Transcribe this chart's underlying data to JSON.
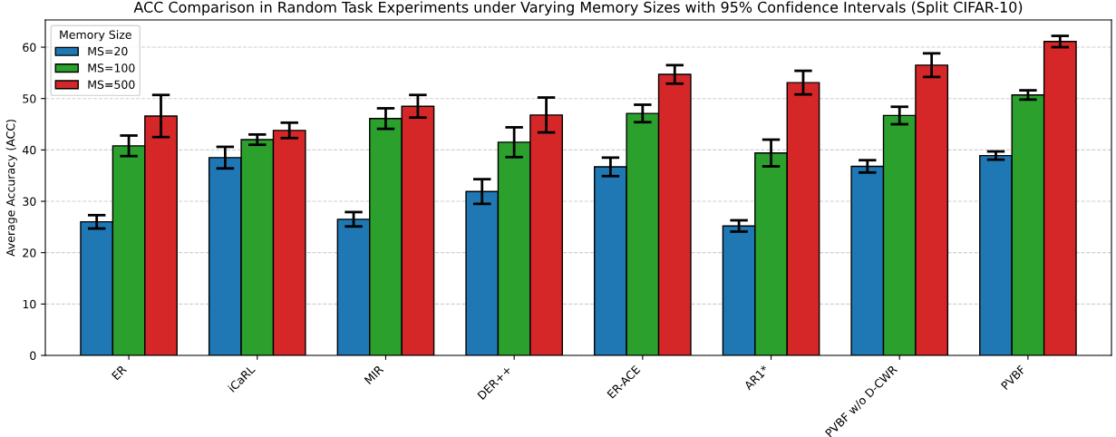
{
  "chart_data": {
    "type": "bar",
    "title": "ACC Comparison in Random Task Experiments under Varying Memory Sizes with 95% Confidence Intervals (Split CIFAR-10)",
    "ylabel": "Average Accuracy (ACC)",
    "legend_title": "Memory Size",
    "legend": "top left",
    "grid": "y",
    "categories": [
      "ER",
      "iCaRL",
      "MIR",
      "DER++",
      "ER-ACE",
      "AR1*",
      "PVBF w/o D-CWR",
      "PVBF"
    ],
    "series": [
      {
        "name": "MS=20",
        "color": "#1f77b4",
        "values": [
          26.0,
          38.5,
          26.5,
          31.9,
          36.7,
          25.2,
          36.8,
          38.9
        ],
        "errors": [
          1.3,
          2.1,
          1.4,
          2.4,
          1.8,
          1.1,
          1.2,
          0.8
        ]
      },
      {
        "name": "MS=100",
        "color": "#2ca02c",
        "values": [
          40.8,
          42.0,
          46.1,
          41.5,
          47.1,
          39.4,
          46.7,
          50.7
        ],
        "errors": [
          2.0,
          1.0,
          2.0,
          2.9,
          1.7,
          2.6,
          1.7,
          0.9
        ]
      },
      {
        "name": "MS=500",
        "color": "#d62728",
        "values": [
          46.6,
          43.8,
          48.5,
          46.8,
          54.7,
          53.1,
          56.5,
          61.1
        ],
        "errors": [
          4.1,
          1.5,
          2.2,
          3.4,
          1.8,
          2.3,
          2.3,
          1.1
        ]
      }
    ],
    "ylim": [
      0,
      65.3
    ],
    "yticks": [
      0,
      10,
      20,
      30,
      40,
      50,
      60
    ]
  }
}
